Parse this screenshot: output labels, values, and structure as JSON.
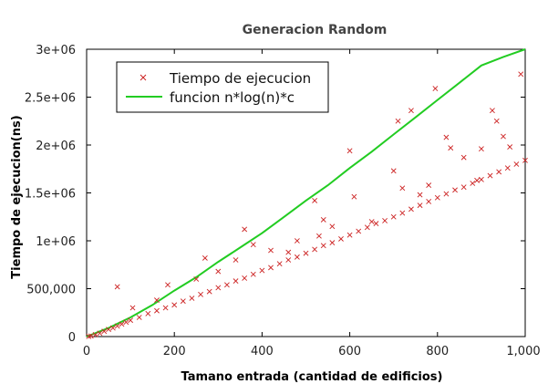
{
  "chart_data": {
    "type": "scatter",
    "title": "Generacion Random",
    "xlabel": "Tamano entrada (cantidad de edificios)",
    "ylabel": "Tiempo de ejecucion(ns)",
    "xlim": [
      0,
      1000
    ],
    "ylim": [
      0,
      3000000
    ],
    "x_ticks": [
      0,
      200,
      400,
      600,
      800,
      1000
    ],
    "x_tick_labels": [
      "0",
      "200",
      "400",
      "600",
      "800",
      "1,000"
    ],
    "y_ticks": [
      0,
      500000,
      1000000,
      1500000,
      2000000,
      2500000,
      3000000
    ],
    "y_tick_labels": [
      "0",
      "500,000",
      "1e+06",
      "1.5e+06",
      "2e+06",
      "2.5e+06",
      "3e+06"
    ],
    "grid": false,
    "legend_position": "top-left",
    "series": [
      {
        "name": "Tiempo de ejecucion",
        "kind": "scatter",
        "marker": "x",
        "color": "#cc2222",
        "trend": {
          "formula": "n*log(n)*c",
          "c": 0.0
        },
        "points": [
          [
            5,
            2000
          ],
          [
            10,
            6000
          ],
          [
            20,
            20000
          ],
          [
            30,
            35000
          ],
          [
            40,
            55000
          ],
          [
            50,
            75000
          ],
          [
            60,
            90000
          ],
          [
            70,
            110000
          ],
          [
            80,
            130000
          ],
          [
            90,
            150000
          ],
          [
            100,
            170000
          ],
          [
            120,
            200000
          ],
          [
            140,
            240000
          ],
          [
            160,
            270000
          ],
          [
            180,
            300000
          ],
          [
            200,
            330000
          ],
          [
            220,
            370000
          ],
          [
            240,
            400000
          ],
          [
            260,
            440000
          ],
          [
            280,
            470000
          ],
          [
            300,
            510000
          ],
          [
            320,
            540000
          ],
          [
            340,
            580000
          ],
          [
            360,
            610000
          ],
          [
            380,
            650000
          ],
          [
            400,
            690000
          ],
          [
            420,
            720000
          ],
          [
            440,
            760000
          ],
          [
            460,
            800000
          ],
          [
            480,
            830000
          ],
          [
            500,
            870000
          ],
          [
            520,
            910000
          ],
          [
            540,
            950000
          ],
          [
            560,
            980000
          ],
          [
            580,
            1020000
          ],
          [
            600,
            1060000
          ],
          [
            620,
            1100000
          ],
          [
            640,
            1140000
          ],
          [
            660,
            1180000
          ],
          [
            680,
            1210000
          ],
          [
            700,
            1250000
          ],
          [
            720,
            1290000
          ],
          [
            740,
            1330000
          ],
          [
            760,
            1370000
          ],
          [
            780,
            1410000
          ],
          [
            800,
            1450000
          ],
          [
            820,
            1490000
          ],
          [
            840,
            1530000
          ],
          [
            860,
            1560000
          ],
          [
            880,
            1600000
          ],
          [
            900,
            1640000
          ],
          [
            920,
            1680000
          ],
          [
            940,
            1720000
          ],
          [
            960,
            1760000
          ],
          [
            980,
            1800000
          ],
          [
            1000,
            1840000
          ],
          [
            70,
            520000
          ],
          [
            105,
            300000
          ],
          [
            160,
            380000
          ],
          [
            185,
            540000
          ],
          [
            270,
            820000
          ],
          [
            300,
            680000
          ],
          [
            360,
            1120000
          ],
          [
            380,
            960000
          ],
          [
            460,
            880000
          ],
          [
            520,
            1420000
          ],
          [
            530,
            1050000
          ],
          [
            540,
            1220000
          ],
          [
            600,
            1940000
          ],
          [
            610,
            1460000
          ],
          [
            700,
            1730000
          ],
          [
            710,
            2250000
          ],
          [
            740,
            2360000
          ],
          [
            780,
            1580000
          ],
          [
            795,
            2590000
          ],
          [
            820,
            2080000
          ],
          [
            830,
            1970000
          ],
          [
            860,
            1870000
          ],
          [
            890,
            1630000
          ],
          [
            900,
            1960000
          ],
          [
            925,
            2360000
          ],
          [
            935,
            2250000
          ],
          [
            950,
            2090000
          ],
          [
            965,
            1980000
          ],
          [
            990,
            2740000
          ],
          [
            720,
            1550000
          ],
          [
            760,
            1480000
          ],
          [
            650,
            1200000
          ],
          [
            560,
            1150000
          ],
          [
            480,
            1000000
          ],
          [
            420,
            900000
          ],
          [
            340,
            800000
          ],
          [
            250,
            600000
          ]
        ]
      },
      {
        "name": "funcion n*log(n)*c",
        "kind": "line",
        "color": "#22cc22",
        "formula": "n*log(n)*c",
        "samples": [
          [
            0,
            0
          ],
          [
            50,
            90000
          ],
          [
            100,
            200000
          ],
          [
            150,
            330000
          ],
          [
            200,
            480000
          ],
          [
            250,
            620000
          ],
          [
            300,
            780000
          ],
          [
            350,
            930000
          ],
          [
            400,
            1080000
          ],
          [
            450,
            1250000
          ],
          [
            500,
            1420000
          ],
          [
            550,
            1580000
          ],
          [
            600,
            1760000
          ],
          [
            650,
            1930000
          ],
          [
            700,
            2110000
          ],
          [
            750,
            2290000
          ],
          [
            800,
            2470000
          ],
          [
            850,
            2650000
          ],
          [
            900,
            2830000
          ],
          [
            950,
            2920000
          ],
          [
            1000,
            3000000
          ]
        ]
      }
    ]
  }
}
